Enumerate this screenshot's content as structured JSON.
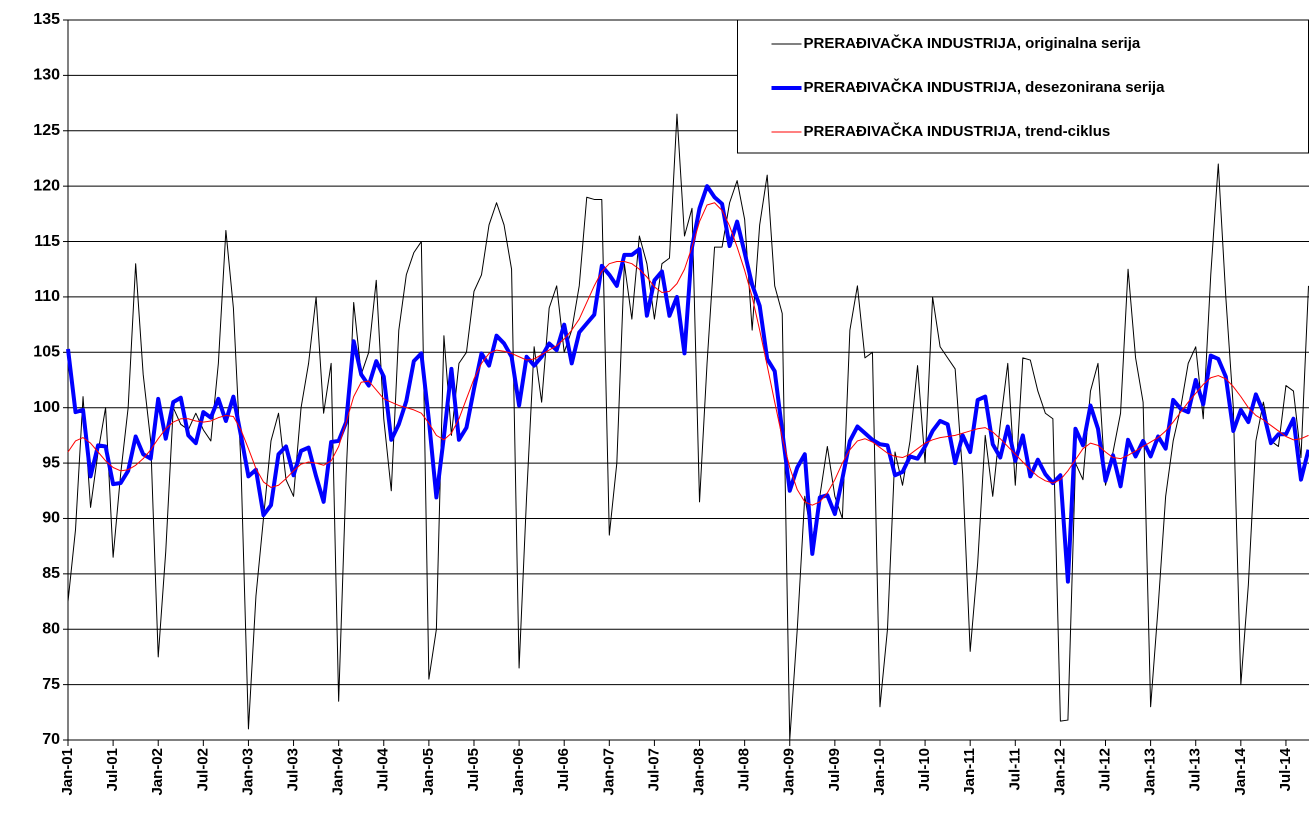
{
  "chart_data": {
    "type": "line",
    "categories": [
      "Jan-01",
      null,
      null,
      null,
      null,
      null,
      "Jul-01",
      null,
      null,
      null,
      null,
      null,
      "Jan-02",
      null,
      null,
      null,
      null,
      null,
      "Jul-02",
      null,
      null,
      null,
      null,
      null,
      "Jan-03",
      null,
      null,
      null,
      null,
      null,
      "Jul-03",
      null,
      null,
      null,
      null,
      null,
      "Jan-04",
      null,
      null,
      null,
      null,
      null,
      "Jul-04",
      null,
      null,
      null,
      null,
      null,
      "Jan-05",
      null,
      null,
      null,
      null,
      null,
      "Jul-05",
      null,
      null,
      null,
      null,
      null,
      "Jan-06",
      null,
      null,
      null,
      null,
      null,
      "Jul-06",
      null,
      null,
      null,
      null,
      null,
      "Jan-07",
      null,
      null,
      null,
      null,
      null,
      "Jul-07",
      null,
      null,
      null,
      null,
      null,
      "Jan-08",
      null,
      null,
      null,
      null,
      null,
      "Jul-08",
      null,
      null,
      null,
      null,
      null,
      "Jan-09",
      null,
      null,
      null,
      null,
      null,
      "Jul-09",
      null,
      null,
      null,
      null,
      null,
      "Jan-10",
      null,
      null,
      null,
      null,
      null,
      "Jul-10",
      null,
      null,
      null,
      null,
      null,
      "Jan-11",
      null,
      null,
      null,
      null,
      null,
      "Jul-11",
      null,
      null,
      null,
      null,
      null,
      "Jan-12",
      null,
      null,
      null,
      null,
      null,
      "Jul-12",
      null,
      null,
      null,
      null,
      null,
      "Jan-13",
      null,
      null,
      null,
      null,
      null,
      "Jul-13",
      null,
      null,
      null,
      null,
      null,
      "Jan-14",
      null,
      null,
      null,
      null,
      null,
      "Jul-14",
      null,
      null,
      null
    ],
    "series": [
      {
        "name": "PRERAĐIVAČKA INDUSTRIJA, originalna serija",
        "color": "#000000",
        "width": 1,
        "values": [
          82.5,
          89,
          101,
          91,
          96,
          100,
          86.5,
          94,
          100,
          113,
          103,
          97,
          77.5,
          87,
          100,
          98.5,
          98,
          99.5,
          98,
          97,
          104,
          116,
          109,
          95,
          71,
          83,
          90,
          97,
          99.5,
          93.5,
          92,
          100,
          104,
          110,
          99.5,
          104,
          73.5,
          94,
          109.5,
          103,
          105,
          111.5,
          99,
          92.5,
          107,
          112,
          114,
          115,
          75.5,
          80,
          106.5,
          97.5,
          104,
          105,
          110.5,
          112,
          116.5,
          118.5,
          116.5,
          112.5,
          76.5,
          92,
          105.5,
          100.5,
          109,
          111,
          105,
          107,
          111,
          119,
          118.8,
          118.8,
          88.5,
          95,
          113,
          108,
          115.5,
          113,
          108,
          113,
          113.5,
          126.5,
          115.5,
          118,
          91.5,
          104,
          114.5,
          114.5,
          118.5,
          120.5,
          117,
          107,
          116.5,
          121,
          111,
          108.5,
          70,
          80,
          92,
          88,
          92,
          96.5,
          92,
          90,
          107,
          111,
          104.5,
          105,
          73,
          80,
          96,
          93,
          97,
          103.8,
          95,
          110,
          105.5,
          104.5,
          103.5,
          94,
          78,
          86,
          97.5,
          92,
          98.5,
          104,
          93,
          104.5,
          104.3,
          101.5,
          99.5,
          99,
          71.7,
          71.8,
          95,
          93.5,
          101.5,
          104,
          93,
          96,
          99.5,
          112.5,
          104.5,
          100.5,
          73,
          82,
          92,
          97,
          100,
          104,
          105.5,
          99,
          112,
          122,
          110,
          100,
          75,
          84,
          97,
          100.5,
          97,
          96.5,
          102,
          101.5,
          95.5,
          111
        ]
      },
      {
        "name": "PRERAĐIVAČKA INDUSTRIJA, desezonirana serija",
        "color": "#0000ff",
        "width": 4,
        "values": [
          105.3,
          99.6,
          99.8,
          93.8,
          96.6,
          96.5,
          93.1,
          93.2,
          94.3,
          97.4,
          95.8,
          95.4,
          100.8,
          97.2,
          100.5,
          100.9,
          97.5,
          96.8,
          99.6,
          99.1,
          100.8,
          98.8,
          101,
          97.5,
          93.8,
          94.4,
          90.3,
          91.2,
          95.8,
          96.5,
          93.9,
          96.1,
          96.4,
          93.8,
          91.5,
          96.9,
          97,
          98.7,
          106,
          103,
          102,
          104.2,
          102.8,
          97.1,
          98.5,
          100.6,
          104.2,
          104.9,
          98.9,
          91.9,
          97.4,
          103.5,
          97.1,
          98.2,
          101.7,
          104.9,
          103.8,
          106.5,
          105.8,
          104.6,
          100.2,
          104.6,
          103.8,
          104.6,
          105.8,
          105.2,
          107.5,
          104,
          106.8,
          107.6,
          108.4,
          112.8,
          112,
          111,
          113.8,
          113.8,
          114.3,
          108.3,
          111.5,
          112.3,
          108.3,
          110,
          104.9,
          114.5,
          118,
          120,
          119,
          118.4,
          114.6,
          116.8,
          114,
          111.1,
          109.2,
          104.4,
          103.3,
          97.9,
          92.5,
          94.6,
          95.8,
          86.8,
          91.9,
          92.1,
          90.4,
          93.6,
          97,
          98.3,
          97.7,
          97.1,
          96.7,
          96.6,
          93.9,
          94.2,
          95.6,
          95.4,
          96.5,
          97.9,
          98.8,
          98.5,
          95,
          97.5,
          96,
          100.7,
          101,
          96.7,
          95.5,
          98.3,
          95.2,
          97.5,
          93.8,
          95.3,
          94,
          93.2,
          93.9,
          84.3,
          98.1,
          96.6,
          100.2,
          98.1,
          93.4,
          95.7,
          92.9,
          97.1,
          95.6,
          97,
          95.6,
          97.4,
          96.3,
          100.7,
          99.9,
          99.6,
          102.5,
          100.3,
          104.7,
          104.4,
          102.8,
          97.9,
          99.8,
          98.7,
          101.2,
          99.6,
          96.8,
          97.6,
          97.6,
          99,
          93.5,
          96.2
        ]
      },
      {
        "name": "PRERAĐIVAČKA INDUSTRIJA, trend-ciklus",
        "color": "#ff0000",
        "width": 1,
        "values": [
          96,
          97,
          97.3,
          96.8,
          96,
          95.2,
          94.6,
          94.3,
          94.4,
          94.8,
          95.4,
          96.2,
          97.2,
          98.1,
          98.7,
          99,
          99,
          98.8,
          98.7,
          98.8,
          99.1,
          99.3,
          99.2,
          98,
          96.3,
          94.5,
          93.3,
          92.8,
          93,
          93.6,
          94.3,
          94.9,
          95.1,
          95,
          94.8,
          95.2,
          96.5,
          98.7,
          101,
          102.3,
          102.4,
          101.6,
          100.8,
          100.5,
          100.2,
          100,
          99.8,
          99.5,
          98.6,
          97.5,
          97.1,
          97.7,
          99,
          100.8,
          102.6,
          104,
          104.9,
          105.2,
          105.1,
          104.9,
          104.6,
          104.3,
          104.4,
          104.8,
          105.2,
          105.6,
          106.2,
          107,
          108,
          109.5,
          111,
          112.3,
          113,
          113.2,
          113.2,
          113,
          112.5,
          111.8,
          110.9,
          110.4,
          110.5,
          111.2,
          112.5,
          114.5,
          116.8,
          118.3,
          118.5,
          117.8,
          116.4,
          114.5,
          112.4,
          110,
          107,
          103.8,
          100.5,
          97.3,
          94.6,
          92.6,
          91.5,
          91.2,
          91.5,
          92.3,
          93.5,
          95,
          96.2,
          97,
          97.2,
          96.9,
          96.4,
          95.9,
          95.6,
          95.5,
          95.8,
          96.3,
          96.8,
          97.1,
          97.3,
          97.4,
          97.5,
          97.7,
          97.9,
          98.1,
          98.2,
          97.8,
          97.2,
          96.5,
          95.8,
          95.1,
          94.4,
          93.8,
          93.4,
          93.2,
          93.5,
          94.3,
          95.3,
          96.3,
          96.8,
          96.6,
          96,
          95.5,
          95.4,
          95.7,
          96.1,
          96.5,
          96.9,
          97.3,
          97.9,
          98.7,
          99.6,
          100.5,
          101.3,
          102.1,
          102.7,
          102.9,
          102.6,
          101.9,
          101,
          100,
          99.3,
          98.9,
          98.4,
          97.9,
          97.4,
          97.1,
          97.2,
          97.5
        ]
      }
    ],
    "ylim": [
      70,
      135
    ],
    "yticks": [
      70,
      75,
      80,
      85,
      90,
      95,
      100,
      105,
      110,
      115,
      120,
      125,
      130,
      135
    ],
    "grid": true,
    "legend": "top-right"
  }
}
